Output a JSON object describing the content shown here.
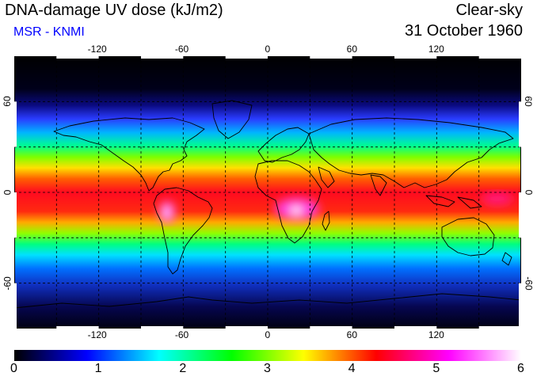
{
  "header": {
    "title": "DNA-damage UV dose (kJ/m2)",
    "subtitle": "MSR - KNMI",
    "sky_condition": "Clear-sky",
    "date": "31 October 1960"
  },
  "map": {
    "projection": "equirectangular",
    "lon_range": [
      -180,
      180
    ],
    "lat_range": [
      -90,
      90
    ],
    "lon_ticks": [
      "-120",
      "-60",
      "0",
      "60",
      "120"
    ],
    "lat_ticks": [
      "60",
      "0",
      "-60"
    ],
    "grid": "dashed, every 30 degrees",
    "coastlines": "black"
  },
  "colorbar": {
    "min": 0,
    "max": 6,
    "labels": [
      "0",
      "1",
      "2",
      "3",
      "4",
      "5",
      "6"
    ],
    "colors": [
      "#000000",
      "#0000ff",
      "#00ffff",
      "#00ff00",
      "#ffff00",
      "#ff0000",
      "#ff00ff",
      "#ffffff"
    ]
  }
}
